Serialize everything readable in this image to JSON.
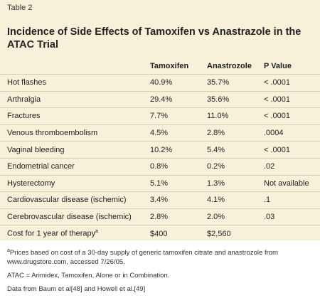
{
  "header": {
    "label": "Table 2",
    "title": "Incidence of Side Effects of Tamoxifen vs Anastrazole in the ATAC Trial"
  },
  "table": {
    "columns": [
      "Tamoxifen",
      "Anastrozole",
      "P Value"
    ],
    "rows": [
      [
        "Hot flashes",
        "40.9%",
        "35.7%",
        "< .0001"
      ],
      [
        "Arthralgia",
        "29.4%",
        "35.6%",
        "< .0001"
      ],
      [
        "Fractures",
        "7.7%",
        "11.0%",
        "< .0001"
      ],
      [
        "Venous thromboembolism",
        "4.5%",
        "2.8%",
        ".0004"
      ],
      [
        "Vaginal bleeding",
        "10.2%",
        "5.4%",
        "< .0001"
      ],
      [
        "Endometrial cancer",
        "0.8%",
        "0.2%",
        ".02"
      ],
      [
        "Hysterectomy",
        "5.1%",
        "1.3%",
        "Not available"
      ],
      [
        "Cardiovascular disease (ischemic)",
        "3.4%",
        "4.1%",
        ".1"
      ],
      [
        "Cerebrovascular disease (ischemic)",
        "2.8%",
        "2.0%",
        ".03"
      ],
      [
        "Cost for 1 year of therapy",
        "$400",
        "$2,560"
      ]
    ],
    "footnote_marker": "a"
  },
  "footnotes": {
    "a": "Prices based on cost of a 30-day supply of generic tamoxifen citrate and anastrozole from www.drugstore.com, accessed 7/26/05.",
    "abbreviation": "ATAC = Arimidex, Tamoxifen, Alone or in Combination.",
    "source": "Data from Baum et al[48] and Howell et al.[49]"
  }
}
